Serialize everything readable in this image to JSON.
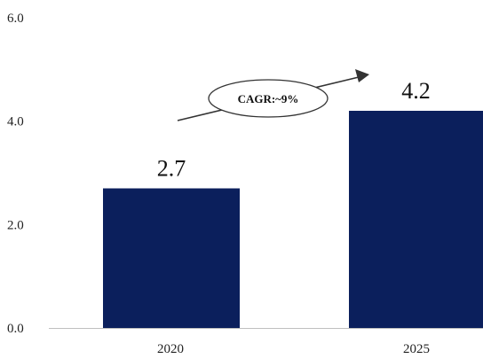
{
  "chart_data": {
    "type": "bar",
    "categories": [
      "2020",
      "2025"
    ],
    "values": [
      2.7,
      4.2
    ],
    "data_labels": [
      "2.7",
      "4.2"
    ],
    "ylim": [
      0,
      6
    ],
    "y_ticks": [
      0.0,
      2.0,
      4.0,
      6.0
    ],
    "y_tick_labels": [
      "0.0",
      "2.0",
      "4.0",
      "6.0"
    ],
    "grid": false,
    "legend": "none",
    "bar_color": "#0b1f5c",
    "annotation": {
      "text": "CAGR:~9%"
    }
  }
}
